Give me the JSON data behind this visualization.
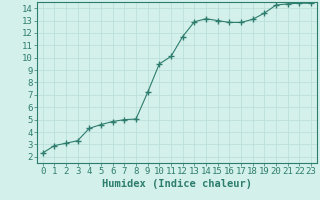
{
  "x": [
    0,
    1,
    2,
    3,
    4,
    5,
    6,
    7,
    8,
    9,
    10,
    11,
    12,
    13,
    14,
    15,
    16,
    17,
    18,
    19,
    20,
    21,
    22,
    23
  ],
  "y": [
    2.3,
    2.9,
    3.1,
    3.3,
    4.3,
    4.6,
    4.85,
    5.0,
    5.05,
    7.2,
    9.5,
    10.1,
    11.7,
    12.9,
    13.15,
    13.0,
    12.85,
    12.85,
    13.1,
    13.6,
    14.25,
    14.35,
    14.4,
    14.4
  ],
  "xlim": [
    -0.5,
    23.5
  ],
  "ylim": [
    1.5,
    14.5
  ],
  "xticks": [
    0,
    1,
    2,
    3,
    4,
    5,
    6,
    7,
    8,
    9,
    10,
    11,
    12,
    13,
    14,
    15,
    16,
    17,
    18,
    19,
    20,
    21,
    22,
    23
  ],
  "yticks": [
    2,
    3,
    4,
    5,
    6,
    7,
    8,
    9,
    10,
    11,
    12,
    13,
    14
  ],
  "xlabel": "Humidex (Indice chaleur)",
  "line_color": "#2d7d6e",
  "marker_color": "#2d7d6e",
  "bg_color": "#d4f0eb",
  "grid_color": "#b8ddd8",
  "axis_color": "#2d7d6e",
  "label_color": "#2d7d6e",
  "tick_label_fontsize": 6.5,
  "xlabel_fontsize": 7.5
}
